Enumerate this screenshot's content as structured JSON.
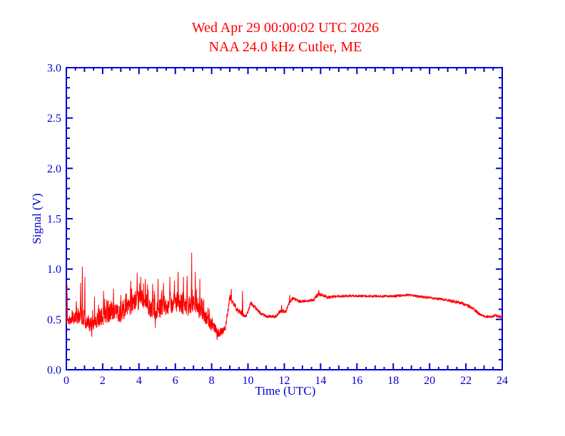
{
  "colors": {
    "title": "#ff0000",
    "trace": "#ff0000",
    "axis": "#0000cd",
    "background": "#ffffff"
  },
  "chart_data": {
    "type": "line",
    "title": "Wed Apr 29 00:00:02 UTC 2026",
    "subtitle": "NAA 24.0 kHz Cutler, ME",
    "xlabel": "Time (UTC)",
    "ylabel": "Signal (V)",
    "xlim": [
      0,
      24
    ],
    "ylim": [
      0.0,
      3.0
    ],
    "grid": false,
    "legend": "none",
    "x_tick_values": [
      0,
      2,
      4,
      6,
      8,
      10,
      12,
      14,
      16,
      18,
      20,
      22,
      24
    ],
    "x_tick_labels": [
      "0",
      "2",
      "4",
      "6",
      "8",
      "10",
      "12",
      "14",
      "16",
      "18",
      "20",
      "22",
      "24"
    ],
    "x_mid_tick_step": 1,
    "x_minor_tick_step": 0.5,
    "y_tick_values": [
      0.0,
      0.5,
      1.0,
      1.5,
      2.0,
      2.5,
      3.0
    ],
    "y_tick_labels": [
      "0.0",
      "0.5",
      "1.0",
      "1.5",
      "2.0",
      "2.5",
      "3.0"
    ],
    "y_minor_tick_step": 0.1,
    "series": [
      {
        "name": "NAA 24.0 kHz signal strength",
        "units": "V",
        "sample_step_hours": 0.01,
        "envelope_t_mean_amp": [
          [
            0.0,
            0.48,
            0.05
          ],
          [
            0.3,
            0.5,
            0.05
          ],
          [
            0.7,
            0.55,
            0.09
          ],
          [
            1.0,
            0.52,
            0.1
          ],
          [
            1.3,
            0.44,
            0.07
          ],
          [
            1.8,
            0.52,
            0.09
          ],
          [
            2.2,
            0.55,
            0.09
          ],
          [
            2.6,
            0.58,
            0.09
          ],
          [
            3.0,
            0.55,
            0.08
          ],
          [
            3.4,
            0.62,
            0.09
          ],
          [
            3.8,
            0.68,
            0.1
          ],
          [
            4.2,
            0.7,
            0.1
          ],
          [
            4.6,
            0.62,
            0.1
          ],
          [
            5.0,
            0.6,
            0.1
          ],
          [
            5.4,
            0.64,
            0.1
          ],
          [
            5.8,
            0.66,
            0.1
          ],
          [
            6.2,
            0.68,
            0.1
          ],
          [
            6.6,
            0.62,
            0.09
          ],
          [
            7.0,
            0.66,
            0.09
          ],
          [
            7.3,
            0.6,
            0.08
          ],
          [
            7.6,
            0.55,
            0.08
          ],
          [
            8.0,
            0.44,
            0.06
          ],
          [
            8.4,
            0.36,
            0.04
          ],
          [
            8.75,
            0.4,
            0.04
          ],
          [
            9.0,
            0.72,
            0.04
          ],
          [
            9.15,
            0.68,
            0.03
          ],
          [
            9.4,
            0.6,
            0.03
          ],
          [
            9.6,
            0.57,
            0.03
          ],
          [
            9.9,
            0.53,
            0.02
          ],
          [
            10.15,
            0.66,
            0.02
          ],
          [
            10.35,
            0.63,
            0.02
          ],
          [
            10.7,
            0.56,
            0.015
          ],
          [
            11.0,
            0.53,
            0.015
          ],
          [
            11.5,
            0.53,
            0.015
          ],
          [
            11.8,
            0.58,
            0.02
          ],
          [
            12.1,
            0.58,
            0.015
          ],
          [
            12.3,
            0.68,
            0.02
          ],
          [
            12.5,
            0.71,
            0.015
          ],
          [
            12.8,
            0.68,
            0.015
          ],
          [
            13.2,
            0.68,
            0.015
          ],
          [
            13.6,
            0.69,
            0.015
          ],
          [
            13.85,
            0.75,
            0.02
          ],
          [
            14.1,
            0.74,
            0.015
          ],
          [
            14.4,
            0.72,
            0.015
          ],
          [
            15.0,
            0.73,
            0.012
          ],
          [
            16.0,
            0.735,
            0.012
          ],
          [
            17.0,
            0.73,
            0.012
          ],
          [
            18.0,
            0.73,
            0.012
          ],
          [
            18.8,
            0.745,
            0.012
          ],
          [
            19.3,
            0.73,
            0.012
          ],
          [
            20.0,
            0.715,
            0.012
          ],
          [
            20.7,
            0.7,
            0.012
          ],
          [
            21.3,
            0.68,
            0.015
          ],
          [
            21.8,
            0.66,
            0.015
          ],
          [
            22.3,
            0.62,
            0.015
          ],
          [
            22.7,
            0.56,
            0.015
          ],
          [
            23.0,
            0.53,
            0.012
          ],
          [
            23.4,
            0.525,
            0.012
          ],
          [
            23.6,
            0.54,
            0.012
          ],
          [
            24.0,
            0.52,
            0.012
          ]
        ],
        "spikes_t_v": [
          [
            0.04,
            0.84
          ],
          [
            0.55,
            0.68
          ],
          [
            0.78,
            0.86
          ],
          [
            0.88,
            1.02
          ],
          [
            1.02,
            0.92
          ],
          [
            1.4,
            0.33
          ],
          [
            1.55,
            0.72
          ],
          [
            2.05,
            0.78
          ],
          [
            2.6,
            0.8
          ],
          [
            3.0,
            0.74
          ],
          [
            3.55,
            0.88
          ],
          [
            3.9,
            0.96
          ],
          [
            4.1,
            0.92
          ],
          [
            4.35,
            0.9
          ],
          [
            4.75,
            0.85
          ],
          [
            4.9,
            0.42
          ],
          [
            5.05,
            0.9
          ],
          [
            5.35,
            0.86
          ],
          [
            5.7,
            0.92
          ],
          [
            5.95,
            0.88
          ],
          [
            6.15,
            0.97
          ],
          [
            6.45,
            0.92
          ],
          [
            6.65,
            0.93
          ],
          [
            6.9,
            1.16
          ],
          [
            7.1,
            0.97
          ],
          [
            7.35,
            0.9
          ],
          [
            8.3,
            0.3
          ],
          [
            9.08,
            0.8
          ],
          [
            9.7,
            0.78
          ],
          [
            11.85,
            0.64
          ],
          [
            12.3,
            0.74
          ],
          [
            13.9,
            0.79
          ]
        ]
      }
    ]
  }
}
